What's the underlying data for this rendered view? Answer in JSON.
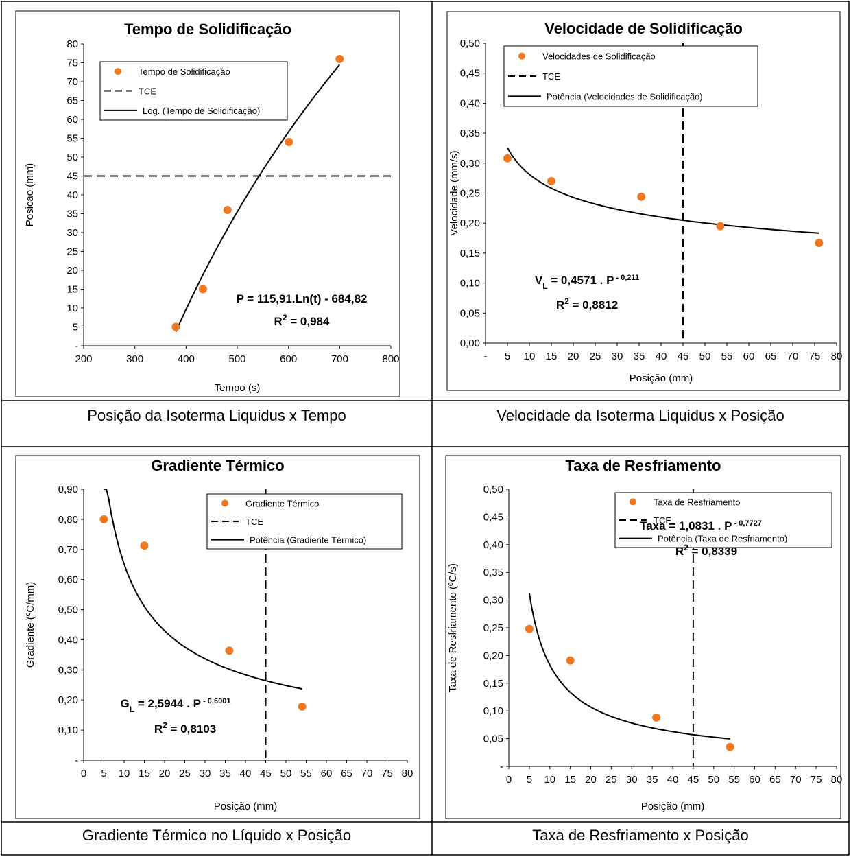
{
  "colors": {
    "marker": "#f07820",
    "line": "#000000",
    "frame": "#000000",
    "background": "#ffffff"
  },
  "captions": [
    "Posição da Isoterma Liquidus x Tempo",
    "Velocidade da Isoterma Liquidus x Posição",
    "Gradiente Térmico no Líquido x Posição",
    "Taxa de Resfriamento x Posição"
  ],
  "chart_data": [
    {
      "type": "scatter",
      "title": "Tempo de Solidificação",
      "xlabel": "Tempo (s)",
      "ylabel": "Posicao (mm)",
      "xlim": [
        200,
        800
      ],
      "ylim": [
        0,
        80
      ],
      "x_ticks": [
        "200",
        "300",
        "400",
        "500",
        "600",
        "700",
        "800"
      ],
      "y_ticks": [
        "-",
        "5",
        "10",
        "15",
        "20",
        "25",
        "30",
        "35",
        "40",
        "45",
        "50",
        "55",
        "60",
        "65",
        "70",
        "75",
        "80"
      ],
      "points": {
        "name": "Tempo de Solidificação",
        "x": [
          380,
          433,
          481,
          601,
          700
        ],
        "y": [
          5,
          15,
          36,
          54,
          76
        ]
      },
      "tce": {
        "name": "TCE",
        "orientation": "horizontal",
        "value": 45
      },
      "fit": {
        "name": "Log. (Tempo de Solidificação)",
        "kind": "log",
        "a": 115.91,
        "b": -684.82,
        "domain": [
          380,
          700
        ]
      },
      "legend": [
        "Tempo de Solidificação",
        "TCE",
        "Log. (Tempo de Solidificação)"
      ],
      "equation": {
        "line1": "P = 115,91.Ln(t) - 684,82",
        "r2_prefix": "R",
        "r2_sup": "2",
        "r2_value": " = 0,984"
      }
    },
    {
      "type": "scatter",
      "title": "Velocidade de Solidificação",
      "xlabel": "Posição (mm)",
      "ylabel": "Velocidade (mm/s)",
      "xlim": [
        0,
        80
      ],
      "ylim": [
        0,
        0.5
      ],
      "x_ticks": [
        "-",
        "5",
        "10",
        "15",
        "20",
        "25",
        "30",
        "35",
        "40",
        "45",
        "50",
        "55",
        "60",
        "65",
        "70",
        "75",
        "80"
      ],
      "y_ticks": [
        "0,00",
        "0,05",
        "0,10",
        "0,15",
        "0,20",
        "0,25",
        "0,30",
        "0,35",
        "0,40",
        "0,45",
        "0,50"
      ],
      "points": {
        "name": "Velocidades de Solidificação",
        "x": [
          5,
          15,
          35.5,
          53.5,
          76
        ],
        "y": [
          0.308,
          0.27,
          0.244,
          0.195,
          0.167
        ]
      },
      "tce": {
        "name": "TCE",
        "orientation": "vertical",
        "value": 45
      },
      "fit": {
        "name": "Potência (Velocidades de Solidificação)",
        "kind": "power",
        "a": 0.4571,
        "b": -0.211,
        "domain": [
          5,
          76
        ]
      },
      "legend": [
        "Velocidades de Solidificação",
        "TCE",
        "Potência (Velocidades de Solidificação)"
      ],
      "equation": {
        "line1_main": "V",
        "line1_sub": "L",
        "line1_rest": " = 0,4571 . P",
        "line1_sup": " - 0,211",
        "r2_prefix": "R",
        "r2_sup": "2",
        "r2_value": " = 0,8812"
      }
    },
    {
      "type": "scatter",
      "title": "Gradiente Térmico",
      "xlabel": "Posição (mm)",
      "ylabel": "Gradiente (ºC/mm)",
      "xlim": [
        0,
        80
      ],
      "ylim": [
        0,
        0.9
      ],
      "x_ticks": [
        "0",
        "5",
        "10",
        "15",
        "20",
        "25",
        "30",
        "35",
        "40",
        "45",
        "50",
        "55",
        "60",
        "65",
        "70",
        "75",
        "80"
      ],
      "y_ticks": [
        "-",
        "0,10",
        "0,20",
        "0,30",
        "0,40",
        "0,50",
        "0,60",
        "0,70",
        "0,80",
        "0,90"
      ],
      "points": {
        "name": "Gradiente Térmico",
        "x": [
          5,
          15,
          36,
          54
        ],
        "y": [
          0.8,
          0.713,
          0.364,
          0.178
        ]
      },
      "tce": {
        "name": "TCE",
        "orientation": "vertical",
        "value": 45
      },
      "fit": {
        "name": "Potência (Gradiente Térmico)",
        "kind": "power",
        "a": 2.5944,
        "b": -0.6001,
        "domain": [
          5,
          54
        ]
      },
      "legend": [
        "Gradiente Térmico",
        "TCE",
        "Potência (Gradiente Térmico)"
      ],
      "equation": {
        "line1_main": "G",
        "line1_sub": "L",
        "line1_rest": " = 2,5944 . P",
        "line1_sup": " - 0,6001",
        "r2_prefix": "R",
        "r2_sup": "2",
        "r2_value": " = 0,8103"
      }
    },
    {
      "type": "scatter",
      "title": "Taxa de Resfriamento",
      "xlabel": "Posição (mm)",
      "ylabel": "Taxa de Resfriamento (ºC/s)",
      "xlim": [
        0,
        80
      ],
      "ylim": [
        0,
        0.5
      ],
      "x_ticks": [
        "0",
        "5",
        "10",
        "15",
        "20",
        "25",
        "30",
        "35",
        "40",
        "45",
        "50",
        "55",
        "60",
        "65",
        "70",
        "75",
        "80"
      ],
      "y_ticks": [
        "-",
        "0,05",
        "0,10",
        "0,15",
        "0,20",
        "0,25",
        "0,30",
        "0,35",
        "0,40",
        "0,45",
        "0,50"
      ],
      "points": {
        "name": "Taxa de Resfriamento",
        "x": [
          5,
          15,
          36,
          54
        ],
        "y": [
          0.248,
          0.191,
          0.088,
          0.035
        ]
      },
      "tce": {
        "name": "TCE",
        "orientation": "vertical",
        "value": 45
      },
      "fit": {
        "name": "Potência (Taxa de Resfriamento)",
        "kind": "power",
        "a": 1.0831,
        "b": -0.7727,
        "domain": [
          5,
          54
        ]
      },
      "legend": [
        "Taxa de Resfriamento",
        "TCE",
        "Potência (Taxa de Resfriamento)"
      ],
      "equation": {
        "line1_main": "Taxa",
        "line1_sub": "",
        "line1_rest": " = 1,0831 . P",
        "line1_sup": " - 0,7727",
        "r2_prefix": "R",
        "r2_sup": "2",
        "r2_value": " = 0,8339"
      }
    }
  ]
}
